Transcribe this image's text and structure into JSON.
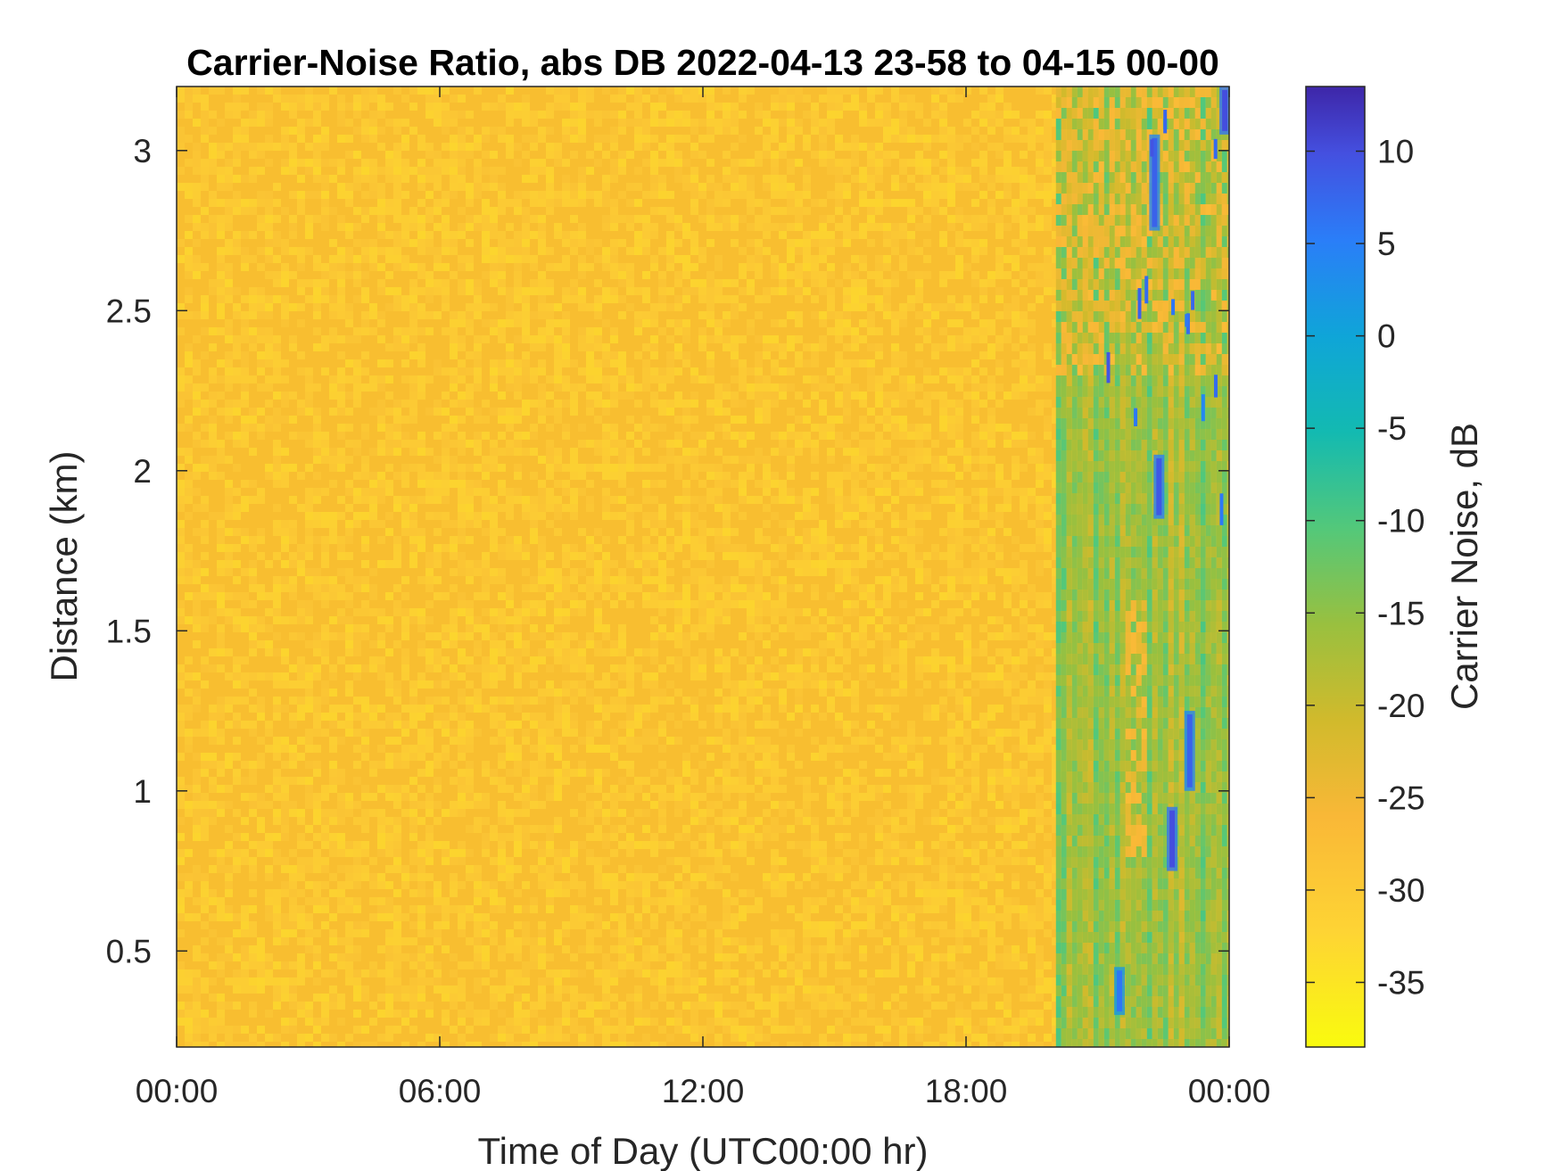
{
  "chart_data": {
    "type": "heatmap",
    "title": "Carrier-Noise Ratio, abs DB 2022-04-13 23-58 to 04-15 00-00",
    "xlabel": "Time of Day (UTC00:00 hr)",
    "ylabel": "Distance (km)",
    "colorbar_label": "Carrier Noise, dB",
    "colormap": "parula",
    "colormap_reversed": true,
    "x_range_hours": [
      0,
      24
    ],
    "x_ticks": [
      {
        "hour": 0,
        "label": "00:00"
      },
      {
        "hour": 6,
        "label": "06:00"
      },
      {
        "hour": 12,
        "label": "12:00"
      },
      {
        "hour": 18,
        "label": "18:00"
      },
      {
        "hour": 24,
        "label": "00:00"
      }
    ],
    "y_range_km": [
      0.2,
      3.2
    ],
    "y_ticks": [
      {
        "value": 0.5,
        "label": "0.5"
      },
      {
        "value": 1,
        "label": "1"
      },
      {
        "value": 1.5,
        "label": "1.5"
      },
      {
        "value": 2,
        "label": "2"
      },
      {
        "value": 2.5,
        "label": "2.5"
      },
      {
        "value": 3,
        "label": "3"
      }
    ],
    "colorbar_range_db": [
      -38.5,
      13.5
    ],
    "colorbar_ticks": [
      {
        "value": 10,
        "label": "10"
      },
      {
        "value": 5,
        "label": "5"
      },
      {
        "value": 0,
        "label": "0"
      },
      {
        "value": -5,
        "label": "-5"
      },
      {
        "value": -10,
        "label": "-10"
      },
      {
        "value": -15,
        "label": "-15"
      },
      {
        "value": -20,
        "label": "-20"
      },
      {
        "value": -25,
        "label": "-25"
      },
      {
        "value": -30,
        "label": "-30"
      },
      {
        "value": -35,
        "label": "-35"
      }
    ],
    "background_level_db": -31,
    "signal_onset_hour": 20.05,
    "signal_region": {
      "hours": [
        20.05,
        24
      ],
      "distance_km": [
        0.2,
        3.2
      ],
      "typical_db": [
        -20,
        -12
      ]
    },
    "strong_returns": [
      {
        "hour": 22.7,
        "distance_km": [
          0.75,
          0.95
        ],
        "peak_db": 10
      },
      {
        "hour": 23.1,
        "distance_km": [
          1.0,
          1.25
        ],
        "peak_db": 8
      },
      {
        "hour": 22.4,
        "distance_km": [
          1.85,
          2.05
        ],
        "peak_db": 9
      },
      {
        "hour": 22.3,
        "distance_km": [
          2.75,
          3.05
        ],
        "peak_db": 8
      },
      {
        "hour": 21.5,
        "distance_km": [
          0.3,
          0.45
        ],
        "peak_db": 6
      },
      {
        "hour": 23.9,
        "distance_km": [
          3.05,
          3.2
        ],
        "peak_db": 10
      }
    ],
    "grid": false
  }
}
